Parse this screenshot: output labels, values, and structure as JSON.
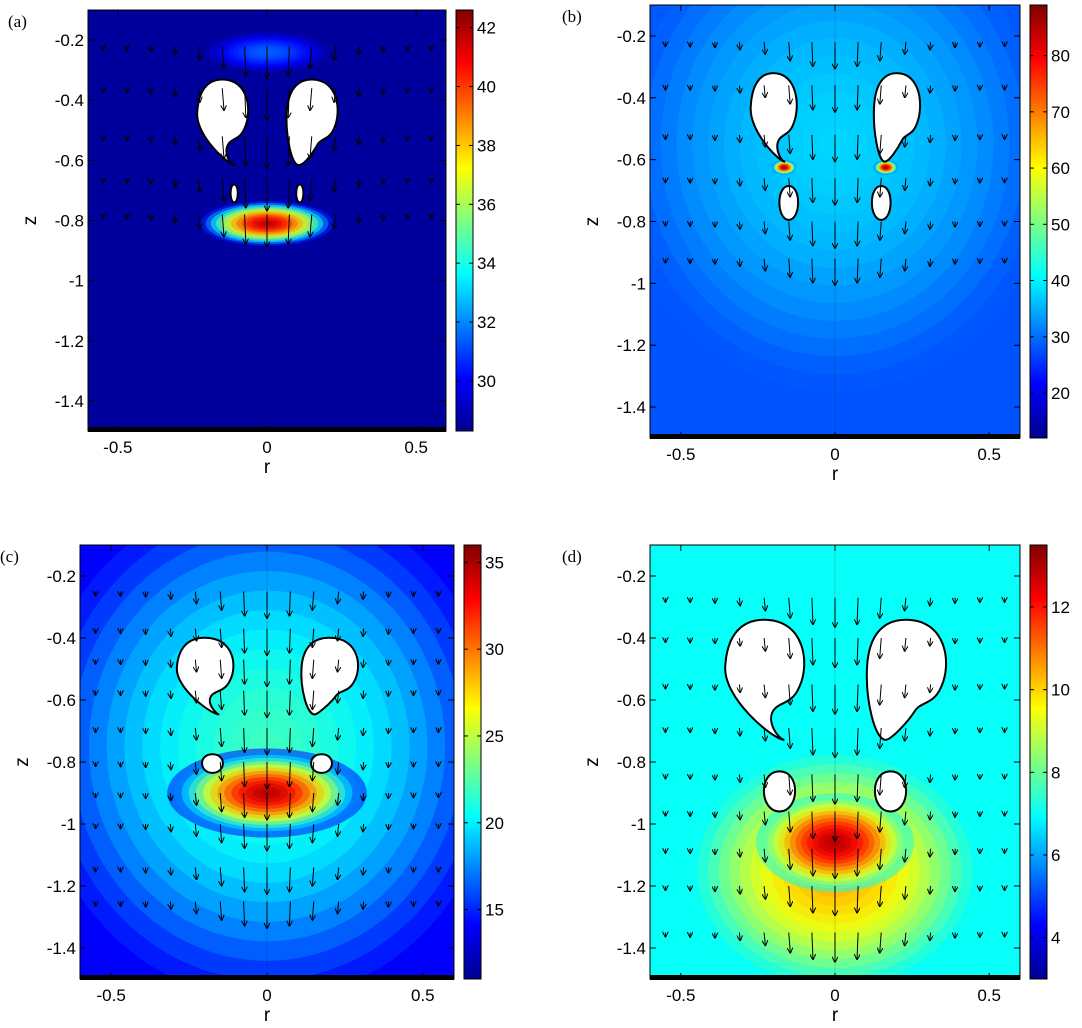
{
  "chart_data": [
    {
      "panel_label": "(a)",
      "type": "heatmap",
      "xlabel": "r",
      "ylabel": "z",
      "xlim": [
        -0.6,
        0.6
      ],
      "ylim": [
        -1.5,
        -0.1
      ],
      "x_ticks": [
        "-0.5",
        "0",
        "0.5"
      ],
      "y_ticks": [
        "-0.2",
        "-0.4",
        "-0.6",
        "-0.8",
        "-1",
        "-1.2",
        "-1.4"
      ],
      "colorbar": {
        "range": [
          28.3,
          42.6
        ],
        "ticks": [
          "30",
          "32",
          "34",
          "36",
          "38",
          "40",
          "42"
        ]
      },
      "background_level": 28.5,
      "hotspots": [
        {
          "r": 0,
          "z": -0.81,
          "sr": 0.15,
          "sz": 0.05,
          "value": 42
        },
        {
          "r": 0,
          "z": -0.24,
          "sr": 0.14,
          "sz": 0.045,
          "value": 31.5
        }
      ],
      "bubbles": [
        {
          "shape": "elongated",
          "r": 0.15,
          "z": -0.47,
          "w": 0.08,
          "h": 0.14,
          "tilt": 0.25
        },
        {
          "shape": "small",
          "r": 0.11,
          "z": -0.71,
          "w": 0.012,
          "h": 0.03
        }
      ],
      "velocity_arrows": {
        "rows_z": [
          -0.22,
          -0.36,
          -0.52,
          -0.66,
          -0.78
        ],
        "strength": 1.0
      }
    },
    {
      "panel_label": "(b)",
      "type": "heatmap",
      "xlabel": "r",
      "ylabel": "z",
      "xlim": [
        -0.6,
        0.6
      ],
      "ylim": [
        -1.5,
        -0.1
      ],
      "x_ticks": [
        "-0.5",
        "0",
        "0.5"
      ],
      "y_ticks": [
        "-0.2",
        "-0.4",
        "-0.6",
        "-0.8",
        "-1",
        "-1.2",
        "-1.4"
      ],
      "colorbar": {
        "range": [
          12,
          89
        ],
        "ticks": [
          "20",
          "30",
          "40",
          "50",
          "60",
          "70",
          "80"
        ]
      },
      "background_level": 28,
      "hotspots": [
        {
          "r": 0,
          "z": -0.55,
          "sr": 0.45,
          "sz": 0.5,
          "value": 38
        },
        {
          "r": 0.165,
          "z": -0.625,
          "sr": 0.025,
          "sz": 0.015,
          "value": 88
        }
      ],
      "bubbles": [
        {
          "shape": "elongated",
          "r": 0.2,
          "z": -0.46,
          "w": 0.07,
          "h": 0.14,
          "tilt": 0.2
        },
        {
          "shape": "small",
          "r": 0.15,
          "z": -0.74,
          "w": 0.03,
          "h": 0.055
        }
      ],
      "velocity_arrows": {
        "rows_z": [
          -0.22,
          -0.36,
          -0.52,
          -0.66,
          -0.8,
          -0.92
        ],
        "strength": 0.8
      }
    },
    {
      "panel_label": "(c)",
      "type": "heatmap",
      "xlabel": "r",
      "ylabel": "z",
      "xlim": [
        -0.6,
        0.6
      ],
      "ylim": [
        -1.5,
        -0.1
      ],
      "x_ticks": [
        "-0.5",
        "0",
        "0.5"
      ],
      "y_ticks": [
        "-0.2",
        "-0.4",
        "-0.6",
        "-0.8",
        "-1",
        "-1.2",
        "-1.4"
      ],
      "colorbar": {
        "range": [
          11,
          36
        ],
        "ticks": [
          "15",
          "20",
          "25",
          "30",
          "35"
        ]
      },
      "background_level": 14,
      "hotspots": [
        {
          "r": 0,
          "z": -0.75,
          "sr": 0.5,
          "sz": 0.55,
          "value": 22
        },
        {
          "r": 0,
          "z": -0.9,
          "sr": 0.2,
          "sz": 0.09,
          "value": 35
        }
      ],
      "bubbles": [
        {
          "shape": "elongated",
          "r": 0.2,
          "z": -0.52,
          "w": 0.085,
          "h": 0.12,
          "tilt": 0.1
        },
        {
          "shape": "small",
          "r": 0.175,
          "z": -0.805,
          "w": 0.033,
          "h": 0.03
        }
      ],
      "velocity_arrows": {
        "rows_z": [
          -0.25,
          -0.37,
          -0.47,
          -0.57,
          -0.69,
          -0.8,
          -0.9,
          -1.0,
          -1.14,
          -1.25
        ],
        "strength": 0.8
      }
    },
    {
      "panel_label": "(d)",
      "type": "heatmap",
      "xlabel": "r",
      "ylabel": "z",
      "xlim": [
        -0.6,
        0.6
      ],
      "ylim": [
        -1.5,
        -0.1
      ],
      "x_ticks": [
        "-0.5",
        "0",
        "0.5"
      ],
      "y_ticks": [
        "-0.2",
        "-0.4",
        "-0.6",
        "-0.8",
        "-1",
        "-1.2",
        "-1.4"
      ],
      "colorbar": {
        "range": [
          3,
          13.5
        ],
        "ticks": [
          "4",
          "6",
          "8",
          "10",
          "12"
        ]
      },
      "background_level": 7,
      "hotspots": [
        {
          "r": 0,
          "z": -1.15,
          "sr": 0.3,
          "sz": 0.25,
          "value": 10.5
        },
        {
          "r": 0,
          "z": -1.06,
          "sr": 0.16,
          "sz": 0.1,
          "value": 13
        }
      ],
      "bubbles": [
        {
          "shape": "elongated",
          "r": 0.23,
          "z": -0.53,
          "w": 0.12,
          "h": 0.19,
          "tilt": 0.15
        },
        {
          "shape": "small",
          "r": 0.18,
          "z": -0.895,
          "w": 0.05,
          "h": 0.065
        }
      ],
      "velocity_arrows": {
        "rows_z": [
          -0.27,
          -0.4,
          -0.55,
          -0.69,
          -0.84,
          -0.96,
          -1.08,
          -1.2,
          -1.35
        ],
        "strength": 0.9
      }
    }
  ]
}
